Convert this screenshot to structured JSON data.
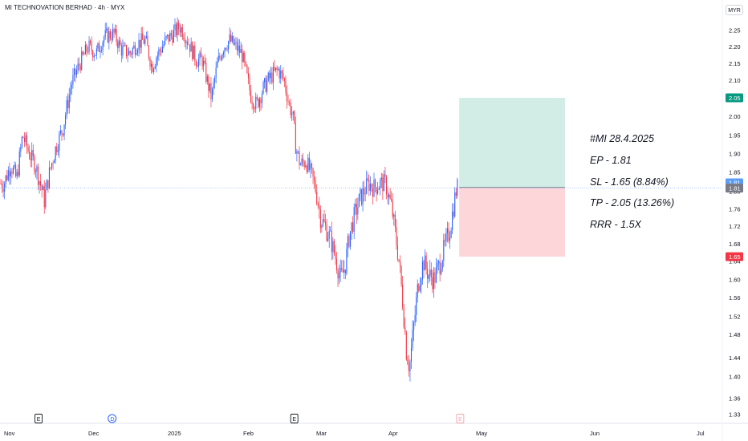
{
  "header": {
    "title": "MI TECHNOVATION BERHAD · 4h · MYX",
    "currency": "MYR"
  },
  "annotation": {
    "lines": [
      "#MI 28.4.2025",
      "EP - 1.81",
      "SL - 1.65 (8.84%)",
      "TP - 2.05 (13.26%)",
      "RRR - 1.5X"
    ]
  },
  "colors": {
    "up": "#2962ff",
    "down": "#f23645",
    "profit": "#d1ede6",
    "loss": "#fcd6d9",
    "tp_badge": "#089981",
    "sl_badge": "#f23645",
    "price_badge": "#5b9cf6",
    "last_badge": "#787b86"
  },
  "chart_data": {
    "type": "candlestick",
    "title": "MI TECHNOVATION BERHAD · 4h · MYX",
    "x_labels": [
      "Nov",
      "Dec",
      "2025",
      "Feb",
      "Mar",
      "Apr",
      "May",
      "Jun",
      "Jul"
    ],
    "y_ticks": [
      "2.25",
      "2.20",
      "2.15",
      "2.10",
      "2.05",
      "2.00",
      "1.95",
      "1.90",
      "1.85",
      "1.80",
      "1.76",
      "1.72",
      "1.68",
      "1.64",
      "1.60",
      "1.56",
      "1.52",
      "1.48",
      "1.44",
      "1.40",
      "1.36",
      "1.33"
    ],
    "ylim": [
      1.33,
      2.28
    ],
    "badges": [
      {
        "label": "2.05",
        "value": 2.05,
        "kind": "tp"
      },
      {
        "label": "1.81",
        "value": 1.822,
        "kind": "price"
      },
      {
        "label": "1.81",
        "value": 1.808,
        "kind": "last"
      },
      {
        "label": "1.65",
        "value": 1.65,
        "kind": "sl"
      }
    ],
    "event_markers": [
      {
        "label": "E",
        "x_index": 0.41,
        "kind": "earnings"
      },
      {
        "label": "D",
        "x_index": 1.3,
        "kind": "dividend"
      },
      {
        "label": "E",
        "x_index": 3.7,
        "kind": "earnings"
      },
      {
        "label": "E",
        "x_index": 5.82,
        "kind": "earnings-upcoming"
      }
    ],
    "position": {
      "type": "long",
      "entry": 1.81,
      "stop_loss": 1.65,
      "take_profit": 2.05,
      "x_start_index": 5.8,
      "x_end_index": 7.0
    },
    "price_series": [
      [
        0.0,
        1.82
      ],
      [
        0.08,
        1.87
      ],
      [
        0.15,
        1.83
      ],
      [
        0.22,
        1.95
      ],
      [
        0.3,
        1.9
      ],
      [
        0.37,
        1.87
      ],
      [
        0.43,
        1.82
      ],
      [
        0.48,
        1.78
      ],
      [
        0.55,
        1.86
      ],
      [
        0.62,
        1.92
      ],
      [
        0.7,
        1.97
      ],
      [
        0.8,
        2.09
      ],
      [
        0.9,
        2.15
      ],
      [
        1.0,
        2.2
      ],
      [
        1.1,
        2.18
      ],
      [
        1.2,
        2.23
      ],
      [
        1.32,
        2.24
      ],
      [
        1.42,
        2.19
      ],
      [
        1.52,
        2.18
      ],
      [
        1.62,
        2.21
      ],
      [
        1.72,
        2.22
      ],
      [
        1.8,
        2.14
      ],
      [
        1.88,
        2.18
      ],
      [
        1.98,
        2.22
      ],
      [
        2.08,
        2.24
      ],
      [
        2.16,
        2.26
      ],
      [
        2.22,
        2.24
      ],
      [
        2.3,
        2.2
      ],
      [
        2.38,
        2.16
      ],
      [
        2.46,
        2.16
      ],
      [
        2.52,
        2.1
      ],
      [
        2.58,
        2.05
      ],
      [
        2.66,
        2.15
      ],
      [
        2.74,
        2.2
      ],
      [
        2.82,
        2.22
      ],
      [
        2.9,
        2.2
      ],
      [
        2.98,
        2.18
      ],
      [
        3.04,
        2.12
      ],
      [
        3.1,
        2.06
      ],
      [
        3.18,
        2.03
      ],
      [
        3.26,
        2.07
      ],
      [
        3.34,
        2.1
      ],
      [
        3.42,
        2.12
      ],
      [
        3.48,
        2.13
      ],
      [
        3.56,
        2.1
      ],
      [
        3.62,
        2.04
      ],
      [
        3.68,
        2.0
      ],
      [
        3.72,
        1.92
      ],
      [
        3.78,
        1.87
      ],
      [
        3.86,
        1.88
      ],
      [
        3.94,
        1.84
      ],
      [
        4.0,
        1.8
      ],
      [
        4.06,
        1.74
      ],
      [
        4.12,
        1.72
      ],
      [
        4.2,
        1.69
      ],
      [
        4.28,
        1.64
      ],
      [
        4.34,
        1.6
      ],
      [
        4.4,
        1.63
      ],
      [
        4.46,
        1.7
      ],
      [
        4.54,
        1.75
      ],
      [
        4.6,
        1.78
      ],
      [
        4.66,
        1.8
      ],
      [
        4.72,
        1.82
      ],
      [
        4.8,
        1.81
      ],
      [
        4.88,
        1.82
      ],
      [
        4.96,
        1.82
      ],
      [
        5.0,
        1.79
      ],
      [
        5.04,
        1.76
      ],
      [
        5.08,
        1.7
      ],
      [
        5.12,
        1.64
      ],
      [
        5.16,
        1.56
      ],
      [
        5.2,
        1.46
      ],
      [
        5.24,
        1.42
      ],
      [
        5.28,
        1.48
      ],
      [
        5.34,
        1.59
      ],
      [
        5.4,
        1.64
      ],
      [
        5.46,
        1.61
      ],
      [
        5.52,
        1.6
      ],
      [
        5.58,
        1.63
      ],
      [
        5.64,
        1.67
      ],
      [
        5.7,
        1.71
      ],
      [
        5.74,
        1.76
      ],
      [
        5.78,
        1.81
      ]
    ]
  }
}
